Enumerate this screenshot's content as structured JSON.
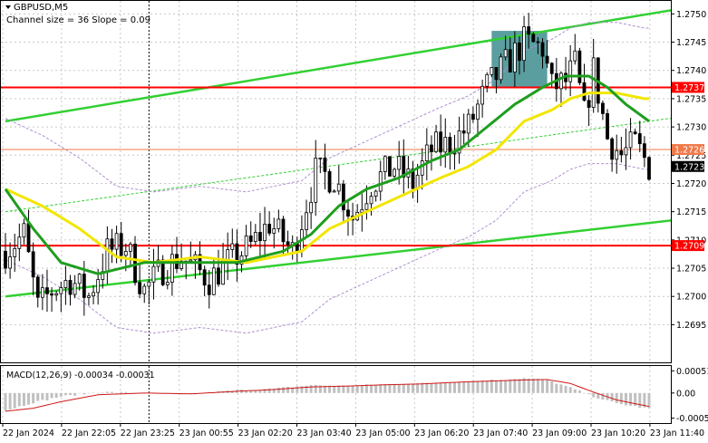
{
  "header": {
    "symbol": "GBPUSD,M5",
    "subtitle": "Channel size = 36 Slope = 0.09"
  },
  "chart_data": {
    "type": "candlestick",
    "y_ticks": [
      "1.2750",
      "1.2745",
      "1.2740",
      "1.2735",
      "1.2730",
      "1.2725",
      "1.2720",
      "1.2715",
      "1.2710",
      "1.2705",
      "1.2700",
      "1.2695"
    ],
    "ylim": [
      1.26925,
      1.27515
    ],
    "x_ticks": [
      "22 Jan 2024",
      "22 Jan 22:05",
      "22 Jan 23:25",
      "23 Jan 00:55",
      "23 Jan 02:20",
      "23 Jan 03:40",
      "23 Jan 05:00",
      "23 Jan 06:20",
      "23 Jan 07:40",
      "23 Jan 09:00",
      "23 Jan 10:20",
      "23 Jan 11:40"
    ],
    "bar_count": 140,
    "close_anchors": [
      [
        0,
        1.2708
      ],
      [
        4,
        1.2711
      ],
      [
        7,
        1.2698
      ],
      [
        10,
        1.2701
      ],
      [
        14,
        1.2703
      ],
      [
        18,
        1.27
      ],
      [
        22,
        1.2708
      ],
      [
        26,
        1.2709
      ],
      [
        30,
        1.2701
      ],
      [
        34,
        1.2705
      ],
      [
        38,
        1.2707
      ],
      [
        44,
        1.2703
      ],
      [
        48,
        1.2706
      ],
      [
        53,
        1.2709
      ],
      [
        57,
        1.2713
      ],
      [
        62,
        1.2708
      ],
      [
        67,
        1.2722
      ],
      [
        71,
        1.2721
      ],
      [
        75,
        1.2714
      ],
      [
        79,
        1.272
      ],
      [
        84,
        1.2723
      ],
      [
        88,
        1.272
      ],
      [
        92,
        1.2726
      ],
      [
        96,
        1.2727
      ],
      [
        100,
        1.273
      ],
      [
        104,
        1.2737
      ],
      [
        108,
        1.2741
      ],
      [
        112,
        1.2745
      ],
      [
        116,
        1.2744
      ],
      [
        118,
        1.2737
      ],
      [
        121,
        1.2738
      ],
      [
        123,
        1.2741
      ],
      [
        125,
        1.2732
      ],
      [
        127,
        1.274
      ],
      [
        130,
        1.2728
      ],
      [
        133,
        1.2725
      ],
      [
        136,
        1.2727
      ],
      [
        139,
        1.2723
      ]
    ],
    "ma_fast_anchors": [
      [
        0,
        1.2719
      ],
      [
        6,
        1.2712
      ],
      [
        12,
        1.2706
      ],
      [
        20,
        1.2704
      ],
      [
        30,
        1.2706
      ],
      [
        40,
        1.2706
      ],
      [
        50,
        1.2706
      ],
      [
        60,
        1.2708
      ],
      [
        66,
        1.2711
      ],
      [
        72,
        1.2716
      ],
      [
        78,
        1.2719
      ],
      [
        85,
        1.2721
      ],
      [
        92,
        1.2724
      ],
      [
        98,
        1.2726
      ],
      [
        104,
        1.273
      ],
      [
        110,
        1.2734
      ],
      [
        116,
        1.2737
      ],
      [
        121,
        1.2739
      ],
      [
        126,
        1.2739
      ],
      [
        130,
        1.2737
      ],
      [
        134,
        1.2734
      ],
      [
        139,
        1.2731
      ]
    ],
    "ma_slow_anchors": [
      [
        0,
        1.2719
      ],
      [
        8,
        1.2716
      ],
      [
        16,
        1.2712
      ],
      [
        24,
        1.2707
      ],
      [
        32,
        1.2706
      ],
      [
        42,
        1.2707
      ],
      [
        52,
        1.2706
      ],
      [
        58,
        1.2707
      ],
      [
        64,
        1.2708
      ],
      [
        70,
        1.2712
      ],
      [
        78,
        1.2715
      ],
      [
        86,
        1.2718
      ],
      [
        94,
        1.2721
      ],
      [
        100,
        1.2723
      ],
      [
        106,
        1.2726
      ],
      [
        112,
        1.2731
      ],
      [
        118,
        1.2733
      ],
      [
        122,
        1.2735
      ],
      [
        126,
        1.2736
      ],
      [
        132,
        1.2736
      ],
      [
        138,
        1.2735
      ]
    ],
    "channel_upper": [
      [
        0,
        1.2731
      ],
      [
        139,
        1.275
      ]
    ],
    "channel_lower": [
      [
        0,
        1.27
      ],
      [
        139,
        1.2713
      ]
    ],
    "channel_mid": [
      [
        0,
        1.2715
      ],
      [
        139,
        1.2731
      ]
    ],
    "horizontal_levels": [
      {
        "price": 1.2737,
        "label": "1.2737",
        "color": "#ff0000"
      },
      {
        "price": 1.2726,
        "label": "1.2726",
        "color": "#f07a4a"
      },
      {
        "price": 1.2709,
        "label": "1.2709",
        "color": "#ff0000"
      }
    ],
    "current_price": {
      "price": 1.2723,
      "label": "1.2723"
    },
    "highlight_zone": {
      "from_bar": 105,
      "to_bar": 117,
      "from_price": 1.2737,
      "to_price": 1.2747,
      "color": "#5b9ea0"
    },
    "vline_bar": 31,
    "macd": {
      "label": "MACD(12,26,9) -0.00034 -0.00031",
      "ticks": [
        "0.00051",
        "0.00",
        "-0.00058"
      ],
      "range": [
        -0.00065,
        0.00058
      ],
      "hist_anchors": [
        [
          0,
          -0.0004
        ],
        [
          6,
          -0.00022
        ],
        [
          12,
          -8e-05
        ],
        [
          20,
          2e-05
        ],
        [
          30,
          0.0
        ],
        [
          40,
          -3e-05
        ],
        [
          50,
          6e-05
        ],
        [
          58,
          0.0001
        ],
        [
          66,
          0.00018
        ],
        [
          74,
          0.00016
        ],
        [
          82,
          0.0002
        ],
        [
          90,
          0.00022
        ],
        [
          98,
          0.00026
        ],
        [
          106,
          0.0003
        ],
        [
          112,
          0.00034
        ],
        [
          117,
          0.0003
        ],
        [
          122,
          0.00012
        ],
        [
          127,
          -8e-05
        ],
        [
          132,
          -0.00024
        ],
        [
          139,
          -0.00036
        ]
      ],
      "signal_anchors": [
        [
          0,
          -0.00042
        ],
        [
          6,
          -0.00035
        ],
        [
          12,
          -0.0002
        ],
        [
          20,
          -4e-05
        ],
        [
          30,
          0.0
        ],
        [
          40,
          -2e-05
        ],
        [
          50,
          4e-05
        ],
        [
          58,
          8e-05
        ],
        [
          66,
          0.00014
        ],
        [
          74,
          0.00016
        ],
        [
          82,
          0.00019
        ],
        [
          90,
          0.00021
        ],
        [
          98,
          0.00025
        ],
        [
          106,
          0.00028
        ],
        [
          112,
          0.0003
        ],
        [
          117,
          0.00031
        ],
        [
          122,
          0.00022
        ],
        [
          127,
          2e-05
        ],
        [
          132,
          -0.00016
        ],
        [
          139,
          -0.00031
        ]
      ]
    }
  },
  "colors": {
    "grid": "#c8c8c8",
    "candle": "#000000",
    "ma_fast": "#1f9e1f",
    "ma_slow": "#f2e600",
    "channel": "#32d032",
    "envelope": "#b090d0",
    "macd_hist": "#c0c0c0",
    "macd_signal": "#d01818",
    "price_tag_bg": "#000000"
  }
}
